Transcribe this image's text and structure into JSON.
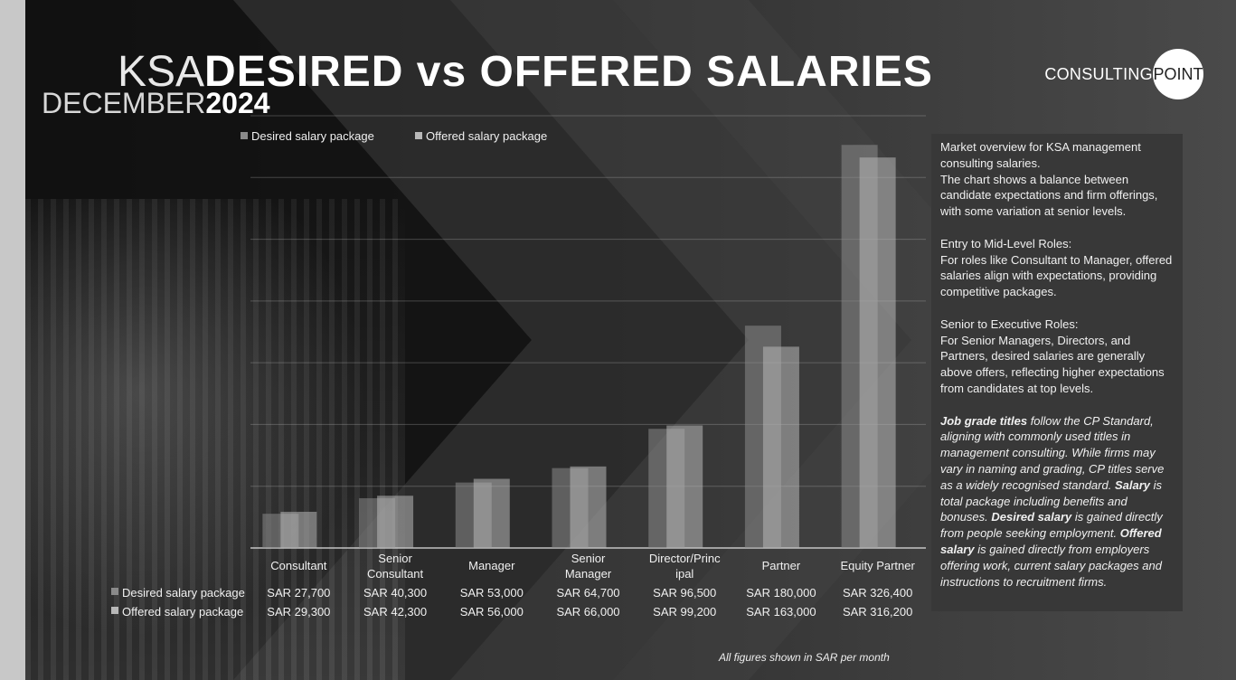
{
  "header": {
    "title_light": "KSA",
    "title_bold": "DESIRED vs OFFERED SALARIES",
    "subtitle_light": "DECEMBER",
    "subtitle_bold": "2024"
  },
  "logo": {
    "text": "CONSULTING",
    "circle_text": "POINT"
  },
  "panel": {
    "p1": "Market overview for KSA management consulting salaries.\nThe chart shows a balance between candidate expectations and firm offerings, with some variation at senior levels.",
    "p2": "Entry to Mid-Level Roles:\nFor roles like Consultant to Manager, offered salaries align with expectations, providing competitive packages.",
    "p3": "Senior to Executive Roles:\nFor Senior Managers, Directors, and Partners, desired salaries are generally above offers, reflecting higher expectations from candidates at top levels.",
    "notes": [
      {
        "t": "Job grade titles",
        "b": true
      },
      {
        "t": " follow the CP Standard, aligning with commonly used titles in management consulting. While firms may vary in naming and grading, CP titles serve as a widely recognised standard. ",
        "b": false
      },
      {
        "t": "Salary",
        "b": true
      },
      {
        "t": " is total package including benefits and bonuses. ",
        "b": false
      },
      {
        "t": "Desired salary",
        "b": true
      },
      {
        "t": " is gained directly from people seeking employment. ",
        "b": false
      },
      {
        "t": "Offered salary",
        "b": true
      },
      {
        "t": " is gained directly from employers offering work, current salary packages  and instructions to recruitment firms.",
        "b": false
      }
    ]
  },
  "footnote": "All figures shown in  SAR per month",
  "colors": {
    "desired": "#8a8a8a",
    "offered": "#b8b8b8"
  },
  "chart_data": {
    "type": "bar",
    "title": "",
    "categories": [
      "Consultant",
      "Senior Consultant",
      "Manager",
      "Senior Manager",
      "Director/Princ ipal",
      "Partner",
      "Equity Partner"
    ],
    "category_lines": [
      [
        "Consultant"
      ],
      [
        "Senior",
        "Consultant"
      ],
      [
        "Manager"
      ],
      [
        "Senior",
        "Manager"
      ],
      [
        "Director/Princ",
        "ipal"
      ],
      [
        "Partner"
      ],
      [
        "Equity Partner"
      ]
    ],
    "series": [
      {
        "name": "Desired salary package",
        "values": [
          27700,
          40300,
          53000,
          64700,
          96500,
          180000,
          326400
        ],
        "labels": [
          "SAR 27,700",
          "SAR 40,300",
          "SAR 53,000",
          "SAR 64,700",
          "SAR 96,500",
          "SAR 180,000",
          "SAR 326,400"
        ]
      },
      {
        "name": "Offered salary package",
        "values": [
          29300,
          42300,
          56000,
          66000,
          99200,
          163000,
          316200
        ],
        "labels": [
          "SAR 29,300",
          "SAR 42,300",
          "SAR 56,000",
          "SAR 66,000",
          "SAR 99,200",
          "SAR 163,000",
          "SAR 316,200"
        ]
      }
    ],
    "ylim": [
      0,
      350000
    ],
    "grid": true,
    "legend": "top-left",
    "data_table": true
  }
}
